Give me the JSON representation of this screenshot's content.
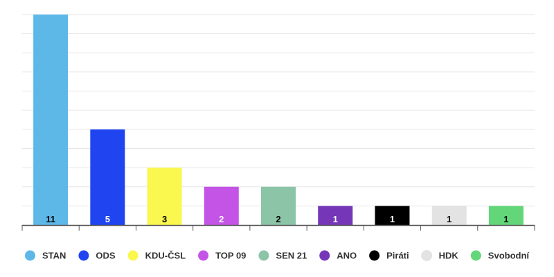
{
  "chart_data": {
    "type": "bar",
    "title": "",
    "xlabel": "",
    "ylabel": "",
    "ylim": [
      0,
      11
    ],
    "grid": true,
    "legend_placement": "bottom",
    "categories": [
      "STAN",
      "ODS",
      "KDU-ČSL",
      "TOP 09",
      "SEN 21",
      "ANO",
      "Piráti",
      "HDK",
      "Svobodní"
    ],
    "values": [
      11,
      5,
      3,
      2,
      2,
      1,
      1,
      1,
      1
    ],
    "value_labels": [
      "11",
      "5",
      "3",
      "2",
      "2",
      "1",
      "1",
      "1",
      "1"
    ],
    "colors": [
      "#5DB8E8",
      "#1F44F0",
      "#FAF74F",
      "#C454E6",
      "#8CC4A8",
      "#7537B8",
      "#000000",
      "#E3E3E3",
      "#63D67A"
    ],
    "label_colors": [
      "#000000",
      "#ffffff",
      "#000000",
      "#ffffff",
      "#000000",
      "#ffffff",
      "#ffffff",
      "#000000",
      "#000000"
    ]
  }
}
